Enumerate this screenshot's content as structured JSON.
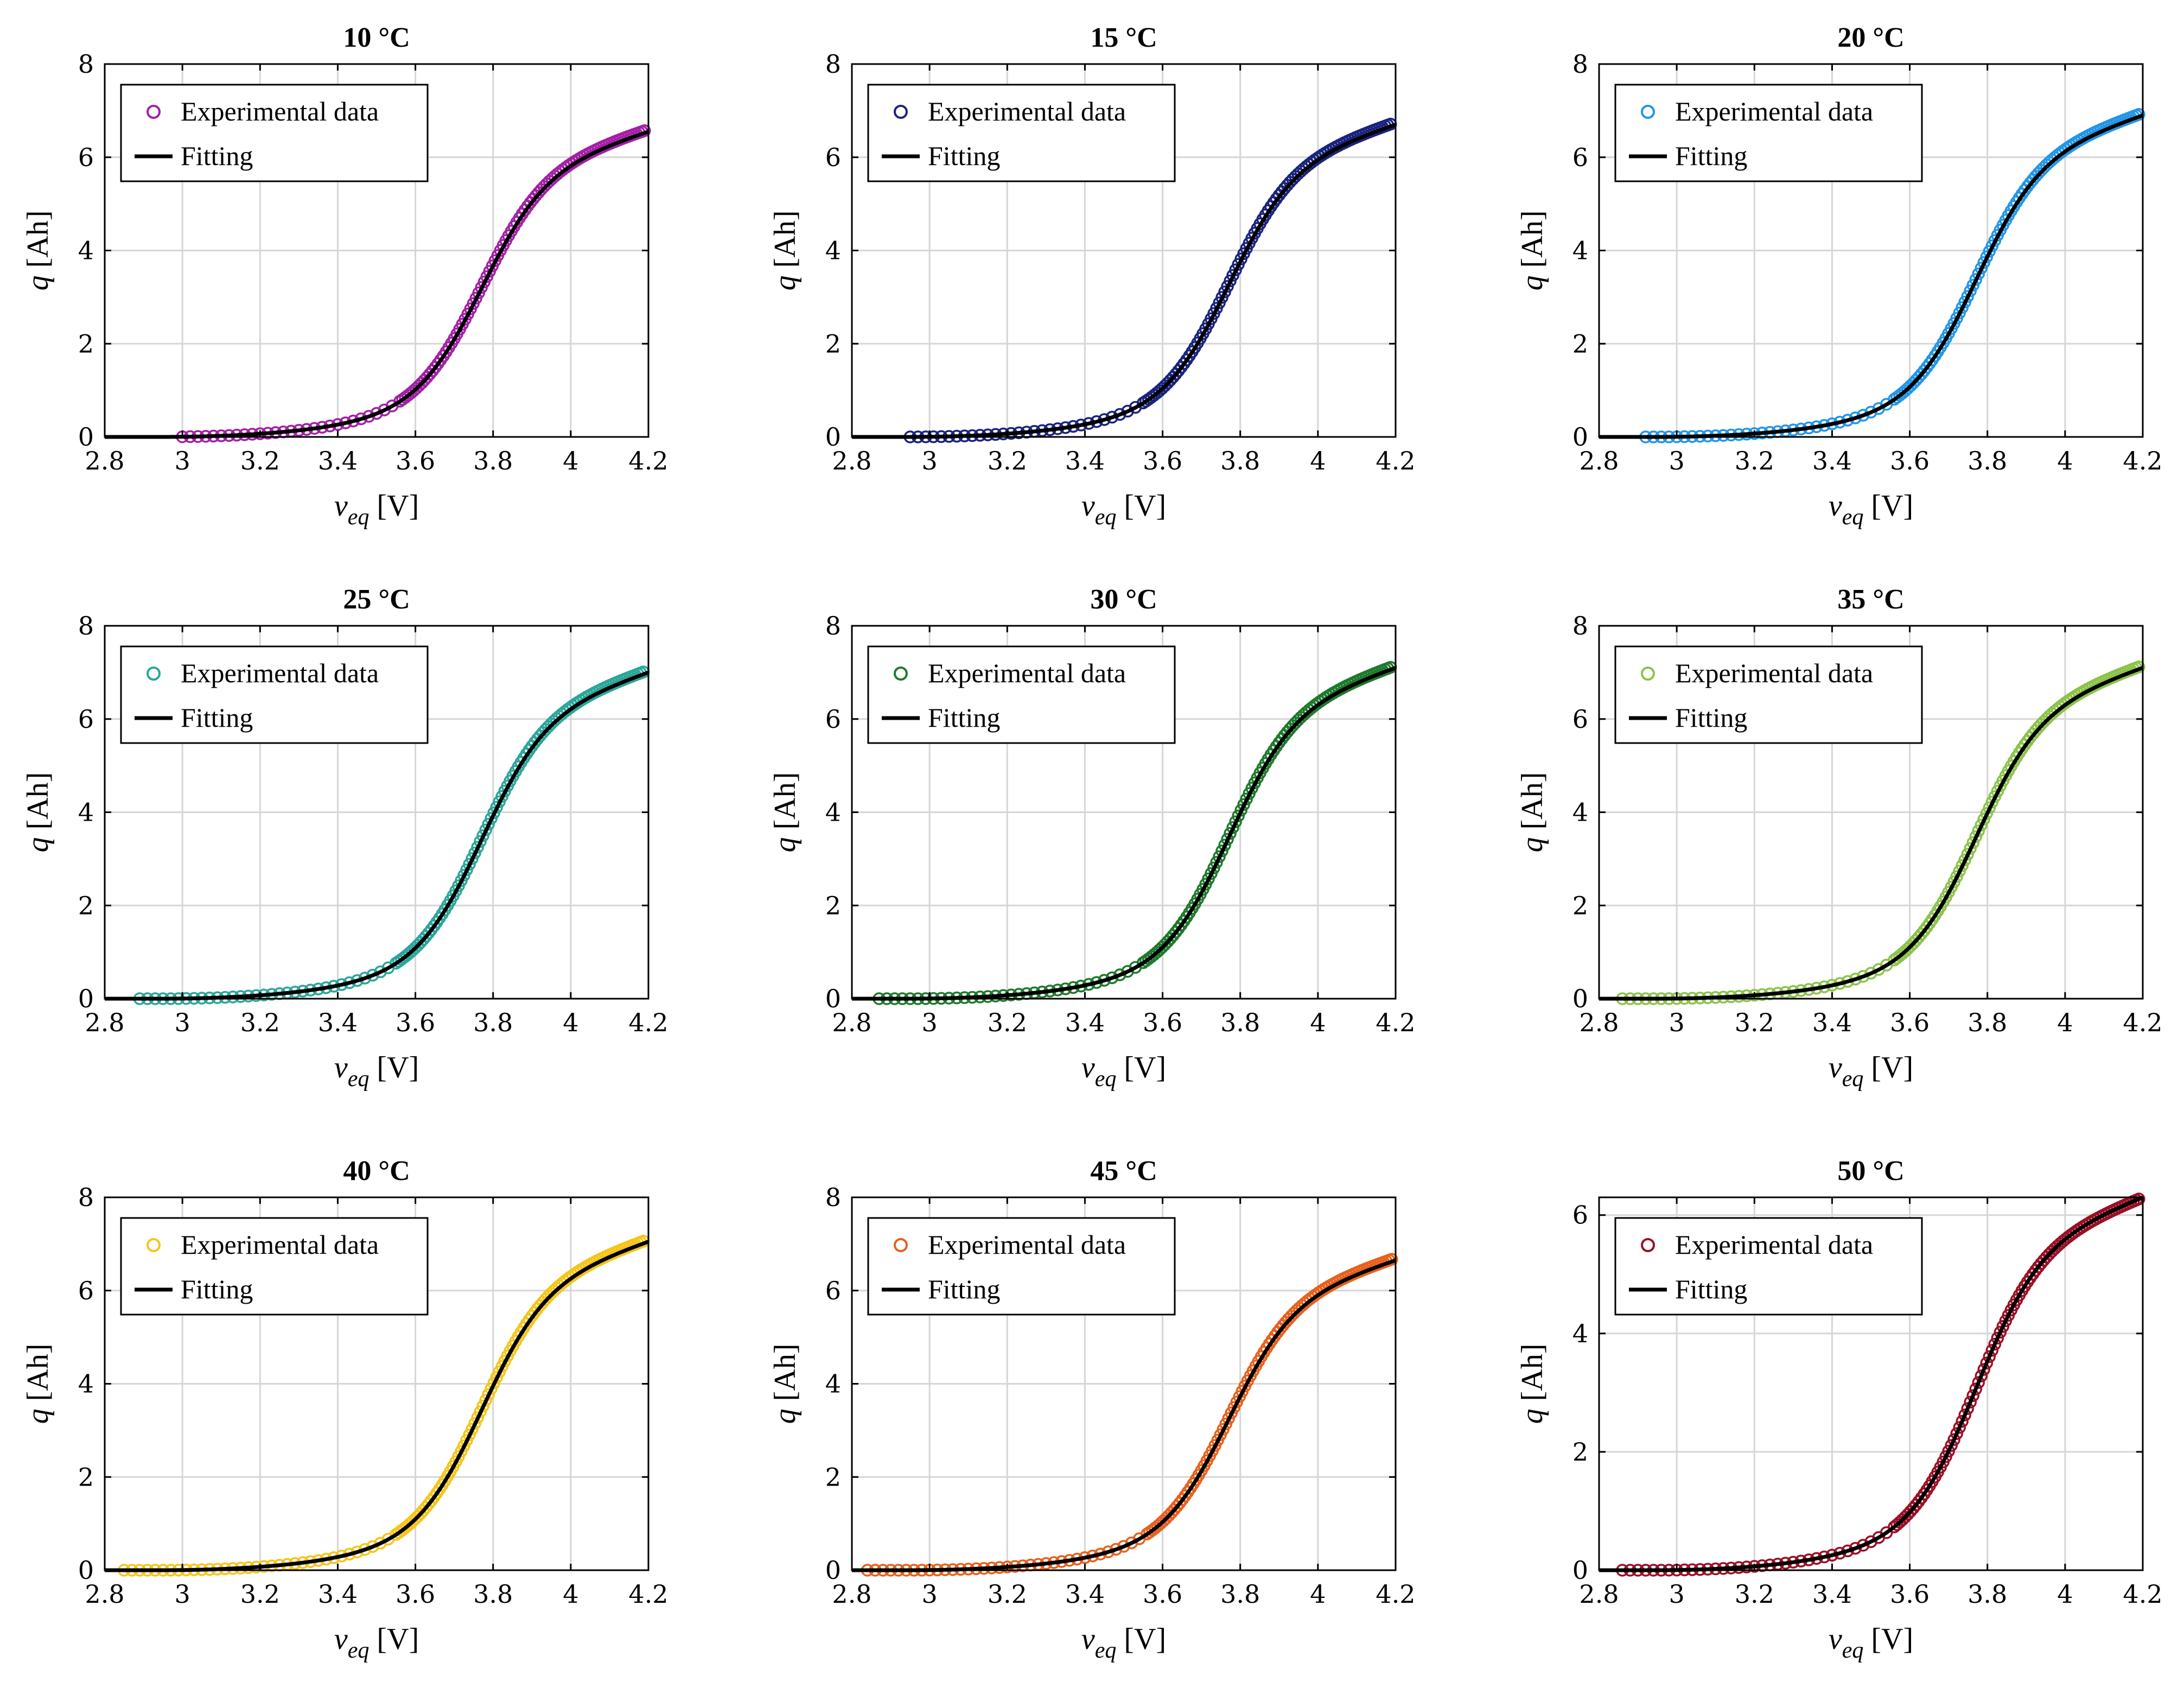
{
  "chart_data": [
    {
      "type": "scatter",
      "title": "10 °C",
      "xlabel": "v_eq [V]",
      "ylabel": "q [Ah]",
      "xlim": [
        2.8,
        4.2
      ],
      "ylim": [
        0,
        8
      ],
      "xticks": [
        "2.8",
        "3",
        "3.2",
        "3.4",
        "3.6",
        "3.8",
        "4",
        "4.2"
      ],
      "yticks": [
        "0",
        "2",
        "4",
        "6",
        "8"
      ],
      "grid": true,
      "legend": "top-left",
      "color": "#a41fa8",
      "series": [
        {
          "name": "Experimental data",
          "marker": "circle",
          "x_start": 3.0,
          "x_end": 4.19,
          "y_end": 6.6
        },
        {
          "name": "Fitting",
          "marker": "line",
          "x_start": 2.8,
          "x_end": 4.2,
          "y_end": 6.55
        }
      ]
    },
    {
      "type": "scatter",
      "title": "15 °C",
      "xlabel": "v_eq [V]",
      "ylabel": "q [Ah]",
      "xlim": [
        2.8,
        4.2
      ],
      "ylim": [
        0,
        8
      ],
      "xticks": [
        "2.8",
        "3",
        "3.2",
        "3.4",
        "3.6",
        "3.8",
        "4",
        "4.2"
      ],
      "yticks": [
        "0",
        "2",
        "4",
        "6",
        "8"
      ],
      "grid": true,
      "legend": "top-left",
      "color": "#1a237e",
      "series": [
        {
          "name": "Experimental data",
          "marker": "circle",
          "x_start": 2.95,
          "x_end": 4.19,
          "y_end": 6.75
        },
        {
          "name": "Fitting",
          "marker": "line",
          "x_start": 2.8,
          "x_end": 4.2,
          "y_end": 6.7
        }
      ]
    },
    {
      "type": "scatter",
      "title": "20 °C",
      "xlabel": "v_eq [V]",
      "ylabel": "q [Ah]",
      "xlim": [
        2.8,
        4.2
      ],
      "ylim": [
        0,
        8
      ],
      "xticks": [
        "2.8",
        "3",
        "3.2",
        "3.4",
        "3.6",
        "3.8",
        "4",
        "4.2"
      ],
      "yticks": [
        "0",
        "2",
        "4",
        "6",
        "8"
      ],
      "grid": true,
      "legend": "top-left",
      "color": "#2196e8",
      "series": [
        {
          "name": "Experimental data",
          "marker": "circle",
          "x_start": 2.92,
          "x_end": 4.19,
          "y_end": 6.95
        },
        {
          "name": "Fitting",
          "marker": "line",
          "x_start": 2.8,
          "x_end": 4.2,
          "y_end": 6.9
        }
      ]
    },
    {
      "type": "scatter",
      "title": "25 °C",
      "xlabel": "v_eq [V]",
      "ylabel": "q [Ah]",
      "xlim": [
        2.8,
        4.2
      ],
      "ylim": [
        0,
        8
      ],
      "xticks": [
        "2.8",
        "3",
        "3.2",
        "3.4",
        "3.6",
        "3.8",
        "4",
        "4.2"
      ],
      "yticks": [
        "0",
        "2",
        "4",
        "6",
        "8"
      ],
      "grid": true,
      "legend": "top-left",
      "color": "#2aa69a",
      "series": [
        {
          "name": "Experimental data",
          "marker": "circle",
          "x_start": 2.89,
          "x_end": 4.19,
          "y_end": 7.05
        },
        {
          "name": "Fitting",
          "marker": "line",
          "x_start": 2.8,
          "x_end": 4.2,
          "y_end": 7.0
        }
      ]
    },
    {
      "type": "scatter",
      "title": "30 °C",
      "xlabel": "v_eq [V]",
      "ylabel": "q [Ah]",
      "xlim": [
        2.8,
        4.2
      ],
      "ylim": [
        0,
        8
      ],
      "xticks": [
        "2.8",
        "3",
        "3.2",
        "3.4",
        "3.6",
        "3.8",
        "4",
        "4.2"
      ],
      "yticks": [
        "0",
        "2",
        "4",
        "6",
        "8"
      ],
      "grid": true,
      "legend": "top-left",
      "color": "#1e7a2c",
      "series": [
        {
          "name": "Experimental data",
          "marker": "circle",
          "x_start": 2.87,
          "x_end": 4.19,
          "y_end": 7.15
        },
        {
          "name": "Fitting",
          "marker": "line",
          "x_start": 2.8,
          "x_end": 4.2,
          "y_end": 7.1
        }
      ]
    },
    {
      "type": "scatter",
      "title": "35 °C",
      "xlabel": "v_eq [V]",
      "ylabel": "q [Ah]",
      "xlim": [
        2.8,
        4.2
      ],
      "ylim": [
        0,
        8
      ],
      "xticks": [
        "2.8",
        "3",
        "3.2",
        "3.4",
        "3.6",
        "3.8",
        "4",
        "4.2"
      ],
      "yticks": [
        "0",
        "2",
        "4",
        "6",
        "8"
      ],
      "grid": true,
      "legend": "top-left",
      "color": "#8bc34a",
      "series": [
        {
          "name": "Experimental data",
          "marker": "circle",
          "x_start": 2.86,
          "x_end": 4.19,
          "y_end": 7.15
        },
        {
          "name": "Fitting",
          "marker": "line",
          "x_start": 2.8,
          "x_end": 4.2,
          "y_end": 7.1
        }
      ]
    },
    {
      "type": "scatter",
      "title": "40 °C",
      "xlabel": "v_eq [V]",
      "ylabel": "q [Ah]",
      "xlim": [
        2.8,
        4.2
      ],
      "ylim": [
        0,
        8
      ],
      "xticks": [
        "2.8",
        "3",
        "3.2",
        "3.4",
        "3.6",
        "3.8",
        "4",
        "4.2"
      ],
      "yticks": [
        "0",
        "2",
        "4",
        "6",
        "8"
      ],
      "grid": true,
      "legend": "top-left",
      "color": "#f5c518",
      "series": [
        {
          "name": "Experimental data",
          "marker": "circle",
          "x_start": 2.85,
          "x_end": 4.19,
          "y_end": 7.1
        },
        {
          "name": "Fitting",
          "marker": "line",
          "x_start": 2.8,
          "x_end": 4.2,
          "y_end": 7.05
        }
      ]
    },
    {
      "type": "scatter",
      "title": "45 °C",
      "xlabel": "v_eq [V]",
      "ylabel": "q [Ah]",
      "xlim": [
        2.8,
        4.2
      ],
      "ylim": [
        0,
        8
      ],
      "xticks": [
        "2.8",
        "3",
        "3.2",
        "3.4",
        "3.6",
        "3.8",
        "4",
        "4.2"
      ],
      "yticks": [
        "0",
        "2",
        "4",
        "6",
        "8"
      ],
      "grid": true,
      "legend": "top-left",
      "color": "#e8601c",
      "series": [
        {
          "name": "Experimental data",
          "marker": "circle",
          "x_start": 2.84,
          "x_end": 4.19,
          "y_end": 6.7
        },
        {
          "name": "Fitting",
          "marker": "line",
          "x_start": 2.8,
          "x_end": 4.2,
          "y_end": 6.65
        }
      ]
    },
    {
      "type": "scatter",
      "title": "50 °C",
      "xlabel": "v_eq [V]",
      "ylabel": "q [Ah]",
      "xlim": [
        2.8,
        4.2
      ],
      "ylim": [
        0,
        6.3
      ],
      "xticks": [
        "2.8",
        "3",
        "3.2",
        "3.4",
        "3.6",
        "3.8",
        "4",
        "4.2"
      ],
      "yticks": [
        "0",
        "2",
        "4",
        "6"
      ],
      "grid": true,
      "legend": "top-left",
      "color": "#9b0f25",
      "series": [
        {
          "name": "Experimental data",
          "marker": "circle",
          "x_start": 2.86,
          "x_end": 4.19,
          "y_end": 6.3
        },
        {
          "name": "Fitting",
          "marker": "line",
          "x_start": 2.8,
          "x_end": 4.2,
          "y_end": 6.3
        }
      ]
    }
  ]
}
